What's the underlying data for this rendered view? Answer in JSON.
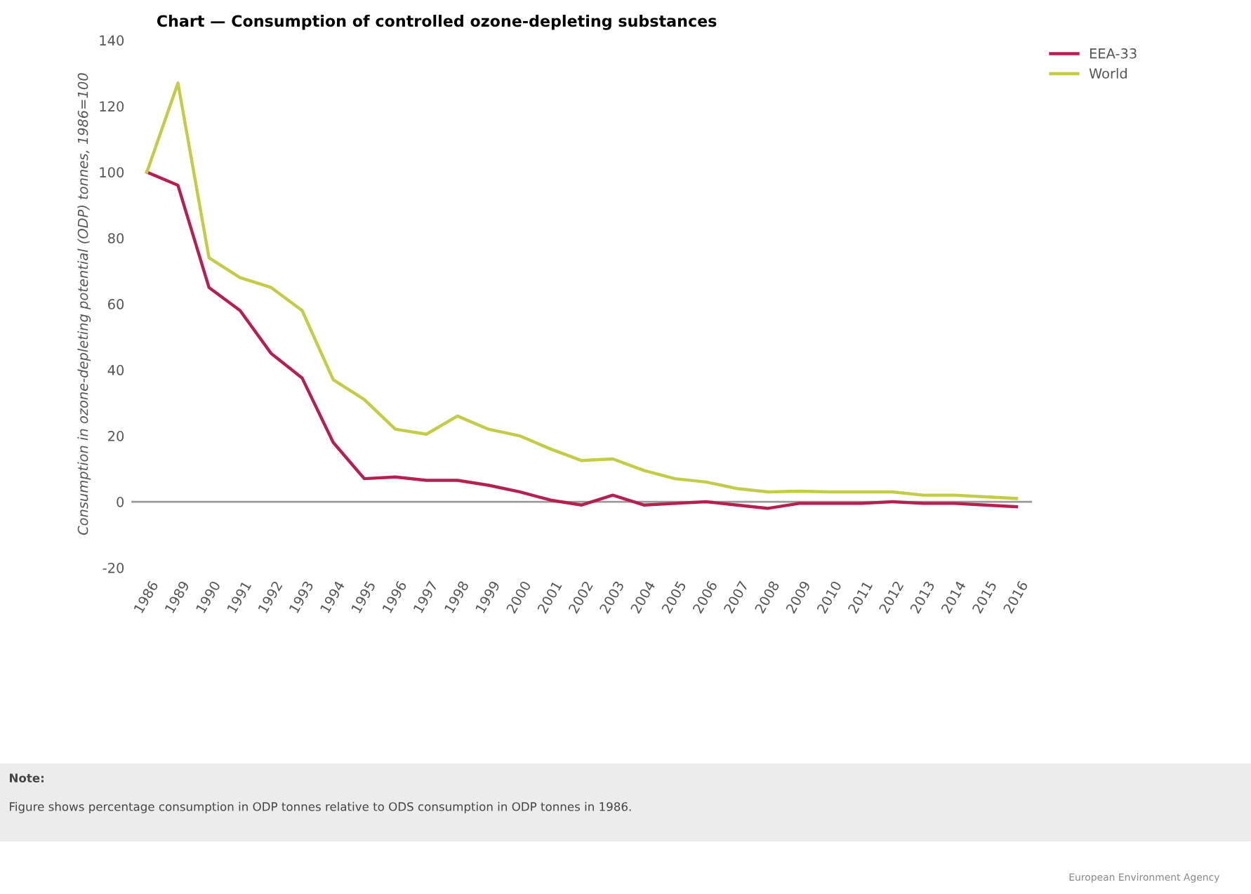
{
  "chart_data": {
    "type": "line",
    "title": "Chart — Consumption of controlled ozone-depleting substances",
    "ylabel": "Consumption in ozone-depleting potential (ODP) tonnes, 1986=100",
    "categories": [
      "1986",
      "1989",
      "1990",
      "1991",
      "1992",
      "1993",
      "1994",
      "1995",
      "1996",
      "1997",
      "1998",
      "1999",
      "2000",
      "2001",
      "2002",
      "2003",
      "2004",
      "2005",
      "2006",
      "2007",
      "2008",
      "2009",
      "2010",
      "2011",
      "2012",
      "2013",
      "2014",
      "2015",
      "2016"
    ],
    "series": [
      {
        "name": "EEA-33",
        "color": "#b5204f",
        "values": [
          100,
          96,
          65,
          58,
          45,
          37.5,
          18,
          7,
          7.5,
          6.5,
          6.5,
          5,
          3,
          0.5,
          -1,
          2,
          -1,
          -0.5,
          0,
          -1,
          -2,
          -0.5,
          -0.5,
          -0.5,
          0,
          -0.5,
          -0.5,
          -1,
          -1.5
        ]
      },
      {
        "name": "World",
        "color": "#c3cc45",
        "values": [
          100,
          127,
          74,
          68,
          65,
          58,
          37,
          31,
          22,
          20.5,
          26,
          22,
          20,
          16,
          12.5,
          13,
          9.5,
          7,
          6,
          4,
          3,
          3.2,
          3,
          3,
          3,
          2,
          2,
          1.5,
          1
        ]
      }
    ],
    "ylim": [
      -20,
      140
    ],
    "yticks": [
      -20,
      0,
      20,
      40,
      60,
      80,
      100,
      120,
      140
    ],
    "ref_lines": [
      {
        "axis": "y",
        "value": 0,
        "color": "#999999"
      }
    ],
    "grid": false,
    "legend": "top right",
    "annotations": [
      "Note:",
      "Figure shows percentage consumption in ODP tonnes relative to ODS consumption in ODP tonnes in 1986.",
      "European Environment Agency"
    ]
  }
}
